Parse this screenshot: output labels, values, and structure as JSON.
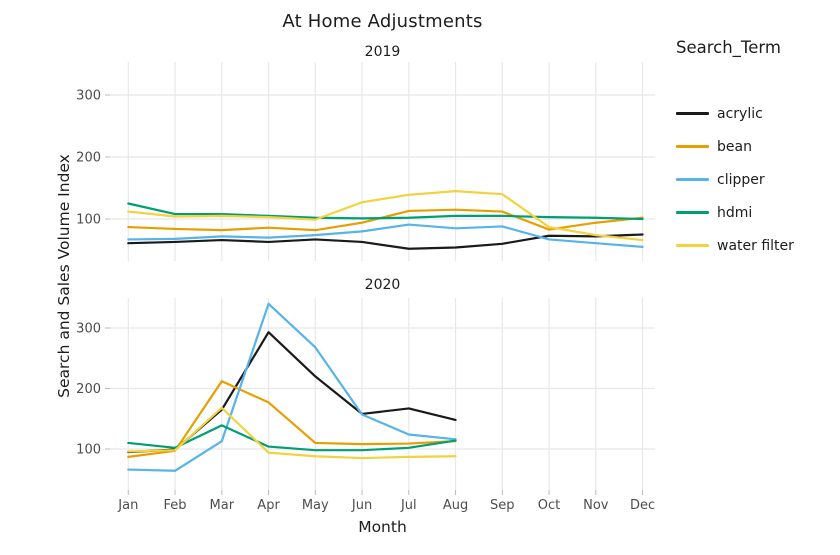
{
  "title": "At Home Adjustments",
  "legend": {
    "title": "Search_Term",
    "items": [
      {
        "label": "acrylic",
        "color": "#1A1A1A"
      },
      {
        "label": "bean",
        "color": "#E69F00"
      },
      {
        "label": "clipper",
        "color": "#56B4E9"
      },
      {
        "label": "hdmi",
        "color": "#009E73"
      },
      {
        "label": "water filter",
        "color": "#F2D23D"
      }
    ]
  },
  "chart_data": {
    "type": "line",
    "title": "At Home Adjustments",
    "xlabel": "Month",
    "ylabel": "Search and Sales Volume Index",
    "categories": [
      "Jan",
      "Feb",
      "Mar",
      "Apr",
      "May",
      "Jun",
      "Jul",
      "Aug",
      "Sep",
      "Oct",
      "Nov",
      "Dec"
    ],
    "y_ticks": [
      100,
      200,
      300
    ],
    "ylim": [
      40,
      360
    ],
    "grid": true,
    "legend_position": "right",
    "facets": [
      {
        "label": "2019",
        "series": [
          {
            "name": "acrylic",
            "values": [
              61,
              63,
              66,
              63,
              67,
              63,
              52,
              54,
              60,
              73,
              72,
              75
            ]
          },
          {
            "name": "bean",
            "values": [
              87,
              84,
              82,
              86,
              82,
              94,
              113,
              115,
              112,
              83,
              94,
              102
            ]
          },
          {
            "name": "clipper",
            "values": [
              67,
              68,
              72,
              70,
              74,
              80,
              91,
              85,
              88,
              67,
              61,
              55
            ]
          },
          {
            "name": "hdmi",
            "values": [
              125,
              108,
              108,
              105,
              102,
              101,
              102,
              105,
              105,
              103,
              102,
              100
            ]
          },
          {
            "name": "water filter",
            "values": [
              112,
              104,
              105,
              103,
              99,
              127,
              139,
              145,
              140,
              87,
              74,
              66
            ]
          }
        ]
      },
      {
        "label": "2020",
        "series": [
          {
            "name": "acrylic",
            "values": [
              95,
              99,
              165,
              293,
              220,
              158,
              167,
              148
            ]
          },
          {
            "name": "bean",
            "values": [
              87,
              97,
              212,
              177,
              110,
              108,
              109,
              113
            ]
          },
          {
            "name": "clipper",
            "values": [
              66,
              64,
              113,
              340,
              268,
              157,
              124,
              116
            ]
          },
          {
            "name": "hdmi",
            "values": [
              110,
              102,
              139,
              104,
              98,
              98,
              102,
              114
            ]
          },
          {
            "name": "water filter",
            "values": [
              96,
              98,
              168,
              94,
              88,
              85,
              87,
              88
            ]
          }
        ]
      }
    ]
  }
}
